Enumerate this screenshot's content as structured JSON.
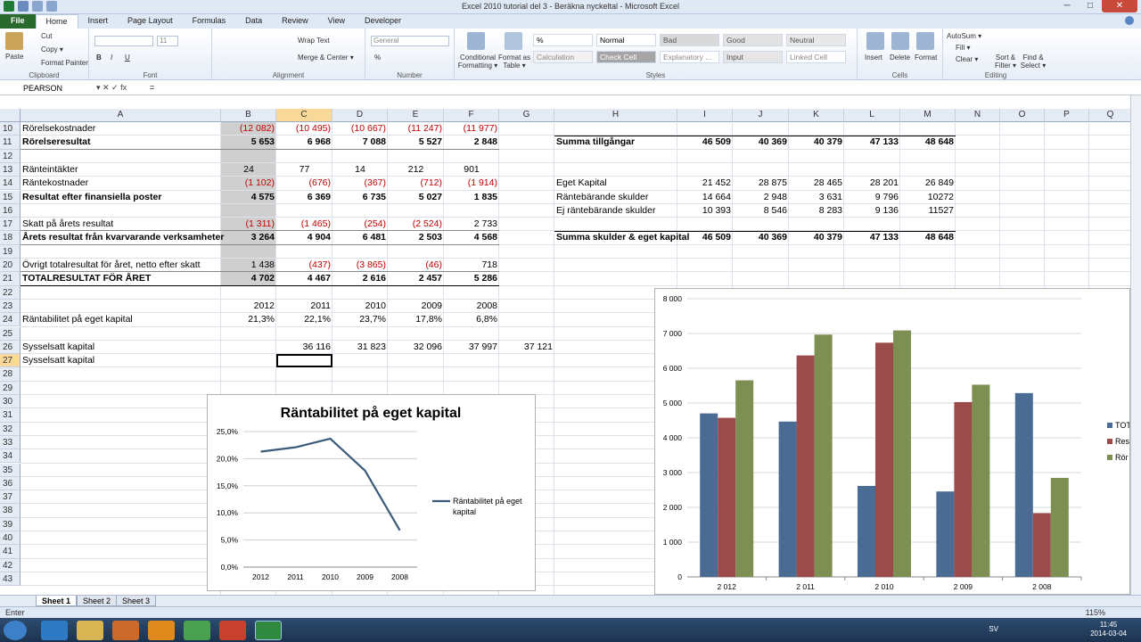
{
  "window": {
    "title": "Excel 2010 tutorial del 3 - Beräkna nyckeltal - Microsoft Excel"
  },
  "tabs": [
    "File",
    "Home",
    "Insert",
    "Page Layout",
    "Formulas",
    "Data",
    "Review",
    "View",
    "Developer"
  ],
  "ribbon": {
    "clipboard": {
      "paste": "Paste",
      "cut": "Cut",
      "copy": "Copy ▾",
      "format_painter": "Format Painter",
      "label": "Clipboard"
    },
    "font": {
      "size": "11",
      "label": "Font",
      "bold": "B",
      "italic": "I",
      "underline": "U"
    },
    "alignment": {
      "wrap": "Wrap Text",
      "merge": "Merge & Center ▾",
      "label": "Alignment"
    },
    "number": {
      "format": "General",
      "label": "Number",
      "percent": "%"
    },
    "styles": {
      "conditional": "Conditional Formatting ▾",
      "format_table": "Format as Table ▾",
      "cells": [
        {
          "text": "%",
          "bg": "#ffffff",
          "color": "#000000"
        },
        {
          "text": "Normal",
          "bg": "#ffffff",
          "color": "#000000"
        },
        {
          "text": "Bad",
          "bg": "#d9d9d9",
          "color": "#555555"
        },
        {
          "text": "Good",
          "bg": "#e2e2e2",
          "color": "#555555"
        },
        {
          "text": "Neutral",
          "bg": "#e8e8e8",
          "color": "#555555"
        },
        {
          "text": "Calculation",
          "bg": "#f2f2f2",
          "color": "#888888"
        },
        {
          "text": "Check Cell",
          "bg": "#a5a5a5",
          "color": "#ffffff"
        },
        {
          "text": "Explanatory ...",
          "bg": "#ffffff",
          "color": "#888888"
        },
        {
          "text": "Input",
          "bg": "#e6e6e6",
          "color": "#555555"
        },
        {
          "text": "Linked Cell",
          "bg": "#ffffff",
          "color": "#888888"
        }
      ],
      "label": "Styles"
    },
    "cells": {
      "insert": "Insert",
      "delete": "Delete",
      "format": "Format",
      "label": "Cells"
    },
    "editing": {
      "autosum": "AutoSum ▾",
      "fill": "Fill ▾",
      "clear": "Clear ▾",
      "sort": "Sort & Filter ▾",
      "find": "Find & Select ▾",
      "label": "Editing"
    }
  },
  "formula_bar": {
    "name_box": "PEARSON",
    "buttons": "▾  ✕  ✓  fx",
    "content": "="
  },
  "columns": [
    "A",
    "B",
    "C",
    "D",
    "E",
    "F",
    "G",
    "H",
    "I",
    "J",
    "K",
    "L",
    "M",
    "N",
    "O",
    "P",
    "Q"
  ],
  "rows": [
    "10",
    "11",
    "12",
    "13",
    "14",
    "15",
    "16",
    "17",
    "18",
    "19",
    "20",
    "21",
    "22",
    "23",
    "24",
    "25",
    "26",
    "27",
    "28",
    "29",
    "30",
    "31",
    "32",
    "33",
    "34",
    "35",
    "36",
    "37",
    "38",
    "39",
    "40",
    "41",
    "42",
    "43"
  ],
  "table_left": [
    {
      "label": "Rörelsekostnader",
      "bold": false,
      "vals": [
        "(12 082)",
        "(10 495)",
        "(10 667)",
        "(11 247)",
        "(11 977)"
      ],
      "neg": true
    },
    {
      "label": "Rörelseresultat",
      "bold": true,
      "vals": [
        "5 653",
        "6 968",
        "7 088",
        "5 527",
        "2 848"
      ],
      "neg": false
    },
    null,
    {
      "label": "Ränteintäkter",
      "bold": false,
      "vals": [
        "24",
        "77",
        "14",
        "212",
        "901"
      ],
      "neg": false,
      "center": true
    },
    {
      "label": "Räntekostnader",
      "bold": false,
      "vals": [
        "(1 102)",
        "(676)",
        "(367)",
        "(712)",
        "(1 914)"
      ],
      "neg": true
    },
    {
      "label": "Resultat efter finansiella poster",
      "bold": true,
      "vals": [
        "4 575",
        "6 369",
        "6 735",
        "5 027",
        "1 835"
      ],
      "neg": false
    },
    null,
    {
      "label": "Skatt på årets resultat",
      "bold": false,
      "vals": [
        "(1 311)",
        "(1 465)",
        "(254)",
        "(2 524)",
        "2 733"
      ],
      "neg": true,
      "lastpos": true
    },
    {
      "label": "Årets resultat från kvarvarande verksamheter",
      "bold": true,
      "vals": [
        "3 264",
        "4 904",
        "6 481",
        "2 503",
        "4 568"
      ],
      "neg": false
    },
    null,
    {
      "label": "Övrigt totalresultat för året, netto efter skatt",
      "bold": false,
      "vals": [
        "1 438",
        "(437)",
        "(3 865)",
        "(46)",
        "718"
      ],
      "neg": true,
      "firstpos": true,
      "lastpos": true
    },
    {
      "label": "TOTALRESULTAT FÖR ÅRET",
      "bold": true,
      "vals": [
        "4 702",
        "4 467",
        "2 616",
        "2 457",
        "5 286"
      ],
      "neg": false
    }
  ],
  "years_row": [
    "2012",
    "2011",
    "2010",
    "2009",
    "2008"
  ],
  "roe_row": {
    "label": "Räntabilitet på eget kapital",
    "vals": [
      "21,3%",
      "22,1%",
      "23,7%",
      "17,8%",
      "6,8%"
    ]
  },
  "cap_row": {
    "label": "Sysselsatt kapital",
    "vals": [
      "36 116",
      "31 823",
      "32 096",
      "37 997",
      "37 121"
    ]
  },
  "cap_row2": {
    "label": "Sysselsatt kapital"
  },
  "table_right": [
    {
      "row": 1,
      "label": "Summa tillgångar",
      "bold": true,
      "vals": [
        "46 509",
        "40 369",
        "40 379",
        "47 133",
        "48 648"
      ]
    },
    {
      "row": 4,
      "label": "Eget Kapital",
      "bold": false,
      "vals": [
        "21 452",
        "28 875",
        "28 465",
        "28 201",
        "26 849"
      ]
    },
    {
      "row": 5,
      "label": "Räntebärande skulder",
      "bold": false,
      "vals": [
        "14 664",
        "2 948",
        "3 631",
        "9 796",
        "10272"
      ]
    },
    {
      "row": 6,
      "label": "Ej räntebärande skulder",
      "bold": false,
      "vals": [
        "10 393",
        "8 546",
        "8 283",
        "9 136",
        "11527"
      ]
    },
    {
      "row": 8,
      "label": "Summa skulder & eget kapital",
      "bold": true,
      "vals": [
        "46 509",
        "40 369",
        "40 379",
        "47 133",
        "48 648"
      ]
    }
  ],
  "chart_data": [
    {
      "type": "line",
      "title": "Räntabilitet på eget kapital",
      "categories": [
        "2012",
        "2011",
        "2010",
        "2009",
        "2008"
      ],
      "series": [
        {
          "name": "Räntabilitet på eget kapital",
          "values": [
            21.3,
            22.1,
            23.7,
            17.8,
            6.8
          ],
          "color": "#3b5a7a"
        }
      ],
      "ylim": [
        0,
        25
      ],
      "yticks": [
        "0,0%",
        "5,0%",
        "10,0%",
        "15,0%",
        "20,0%",
        "25,0%"
      ],
      "legend": "right",
      "grid": true
    },
    {
      "type": "bar",
      "title": "",
      "categories": [
        "2 012",
        "2 011",
        "2 010",
        "2 009",
        "2 008"
      ],
      "series": [
        {
          "name": "TOT",
          "values": [
            4702,
            4467,
            2616,
            2457,
            5286
          ],
          "color": "#4a6b94"
        },
        {
          "name": "Res",
          "values": [
            4575,
            6369,
            6735,
            5027,
            1835
          ],
          "color": "#9a4b4a"
        },
        {
          "name": "Rör",
          "values": [
            5653,
            6968,
            7088,
            5527,
            2848
          ],
          "color": "#7d8f52"
        }
      ],
      "ylim": [
        0,
        8000
      ],
      "yticks": [
        "0",
        "1 000",
        "2 000",
        "3 000",
        "4 000",
        "5 000",
        "6 000",
        "7 000",
        "8 000"
      ],
      "legend": "right",
      "grid": true
    }
  ],
  "sheets": [
    "Sheet 1",
    "Sheet 2",
    "Sheet 3"
  ],
  "status": {
    "mode": "Enter",
    "zoom": "115%"
  },
  "clock": {
    "time": "11:45",
    "date": "2014-03-04",
    "lang": "SV"
  }
}
